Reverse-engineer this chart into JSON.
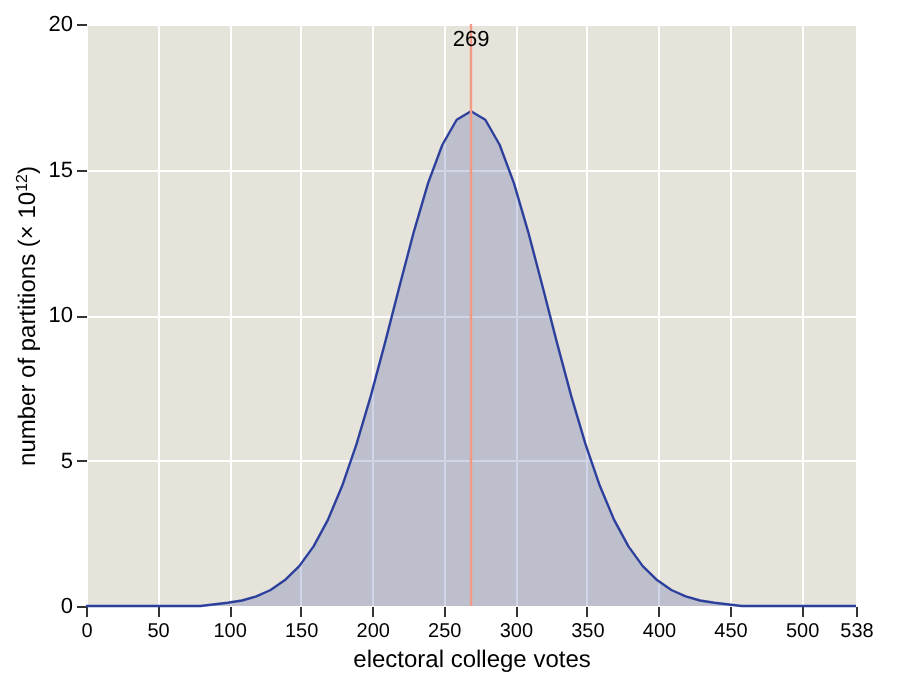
{
  "chart_data": {
    "type": "area",
    "xlabel": "electoral college votes",
    "ylabel": "number of partitions (× 10$^{12}$)",
    "x": [
      0,
      80,
      99,
      109,
      119,
      129,
      139,
      149,
      159,
      169,
      179,
      189,
      199,
      209,
      219,
      229,
      239,
      249,
      259,
      269,
      279,
      289,
      299,
      309,
      319,
      329,
      339,
      349,
      359,
      369,
      379,
      389,
      399,
      409,
      419,
      429,
      439,
      458,
      538
    ],
    "series": [
      {
        "color": "#2c3f9c",
        "values": [
          0,
          0,
          0.11,
          0.19,
          0.33,
          0.55,
          0.89,
          1.37,
          2.05,
          2.96,
          4.13,
          5.56,
          7.22,
          9.06,
          10.98,
          12.85,
          14.53,
          15.85,
          16.71,
          17,
          16.71,
          15.85,
          14.53,
          12.85,
          10.98,
          9.06,
          7.22,
          5.56,
          4.13,
          2.96,
          2.05,
          1.37,
          0.89,
          0.55,
          0.33,
          0.19,
          0.11,
          0,
          0
        ]
      }
    ],
    "xlim": [
      0,
      538
    ],
    "xticks": [
      0,
      50,
      100,
      150,
      200,
      250,
      300,
      350,
      400,
      450,
      500,
      538
    ],
    "ylim": [
      0,
      20
    ],
    "yticks": [
      0,
      5,
      10,
      15,
      20
    ],
    "grid": true,
    "ref_lines": [
      {
        "axis": "x",
        "value": 269,
        "label": "269",
        "color": "#f29a86"
      }
    ]
  }
}
